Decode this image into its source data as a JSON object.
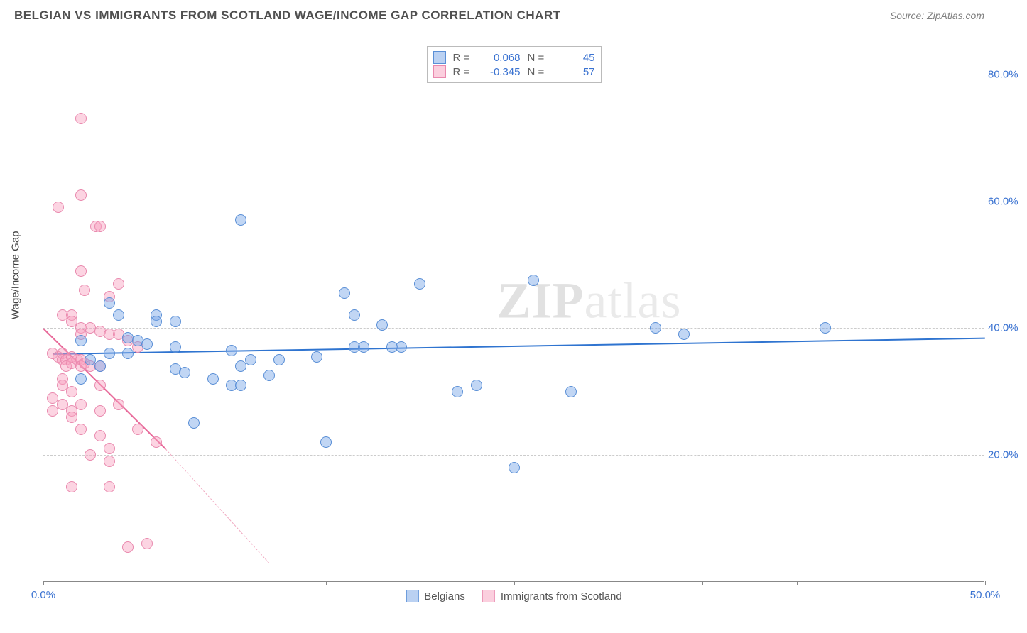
{
  "header": {
    "title": "BELGIAN VS IMMIGRANTS FROM SCOTLAND WAGE/INCOME GAP CORRELATION CHART",
    "source": "Source: ZipAtlas.com"
  },
  "chart": {
    "type": "scatter",
    "ylabel": "Wage/Income Gap",
    "xlim": [
      0,
      50
    ],
    "ylim": [
      0,
      85
    ],
    "xtick_labels": {
      "0": "0.0%",
      "50": "50.0%"
    },
    "ytick_labels": {
      "20": "20.0%",
      "40": "40.0%",
      "60": "60.0%",
      "80": "80.0%"
    },
    "xtick_positions": [
      0,
      5,
      10,
      15,
      20,
      25,
      30,
      35,
      40,
      45,
      50
    ],
    "ytick_positions": [
      20,
      40,
      60,
      80
    ],
    "grid_color": "#cccccc",
    "background_color": "#ffffff",
    "axis_color": "#888888",
    "label_color": "#3b73d1",
    "marker_radius": 8,
    "series_blue": {
      "label": "Belgians",
      "color_fill": "rgba(117,163,230,0.45)",
      "color_stroke": "#5a8fd6",
      "R": "0.068",
      "N": "45",
      "trend": {
        "x1": 0.5,
        "y1": 36,
        "x2": 50,
        "y2": 38.5,
        "color": "#2f74d0"
      },
      "points": [
        [
          10.5,
          57
        ],
        [
          16,
          45.5
        ],
        [
          20,
          47
        ],
        [
          26,
          47.5
        ],
        [
          3.5,
          44
        ],
        [
          6,
          42
        ],
        [
          6,
          41
        ],
        [
          7,
          41
        ],
        [
          16.5,
          42
        ],
        [
          4.5,
          38.5
        ],
        [
          5,
          38
        ],
        [
          5.5,
          37.5
        ],
        [
          7,
          37
        ],
        [
          10,
          36.5
        ],
        [
          10.5,
          34
        ],
        [
          14.5,
          35.5
        ],
        [
          16.5,
          37
        ],
        [
          17,
          37
        ],
        [
          18.5,
          37
        ],
        [
          7,
          33.5
        ],
        [
          7.5,
          33
        ],
        [
          8,
          25
        ],
        [
          9,
          32
        ],
        [
          10,
          31
        ],
        [
          10.5,
          31
        ],
        [
          11,
          35
        ],
        [
          12,
          32.5
        ],
        [
          12.5,
          35
        ],
        [
          22,
          30
        ],
        [
          23,
          31
        ],
        [
          28,
          30
        ],
        [
          32.5,
          40
        ],
        [
          34,
          39
        ],
        [
          41.5,
          40
        ],
        [
          15,
          22
        ],
        [
          25,
          18
        ],
        [
          2,
          38
        ],
        [
          2.5,
          35
        ],
        [
          2,
          32
        ],
        [
          3,
          34
        ],
        [
          3.5,
          36
        ],
        [
          4,
          42
        ],
        [
          4.5,
          36
        ],
        [
          18,
          40.5
        ],
        [
          19,
          37
        ]
      ]
    },
    "series_pink": {
      "label": "Immigrants from Scotland",
      "color_fill": "rgba(248,160,190,0.45)",
      "color_stroke": "#e989ae",
      "R": "-0.345",
      "N": "57",
      "trend_solid": {
        "x1": 0,
        "y1": 40,
        "x2": 6.5,
        "y2": 21,
        "color": "#e86a9a"
      },
      "trend_dash": {
        "x1": 6.5,
        "y1": 21,
        "x2": 12,
        "y2": 3,
        "color": "#f0a8c0"
      },
      "points": [
        [
          2,
          73
        ],
        [
          2,
          61
        ],
        [
          0.8,
          59
        ],
        [
          2.8,
          56
        ],
        [
          3,
          56
        ],
        [
          2,
          49
        ],
        [
          2.2,
          46
        ],
        [
          4,
          47
        ],
        [
          3.5,
          45
        ],
        [
          1,
          42
        ],
        [
          1.5,
          42
        ],
        [
          1.5,
          41
        ],
        [
          2,
          40
        ],
        [
          2,
          39
        ],
        [
          2.5,
          40
        ],
        [
          3,
          39.5
        ],
        [
          3.5,
          39
        ],
        [
          4,
          39
        ],
        [
          4.5,
          38
        ],
        [
          0.5,
          36
        ],
        [
          0.8,
          35.5
        ],
        [
          1,
          36
        ],
        [
          1,
          35
        ],
        [
          1.2,
          35
        ],
        [
          1.2,
          34
        ],
        [
          1.5,
          35.5
        ],
        [
          1.5,
          34.5
        ],
        [
          1.8,
          35
        ],
        [
          2,
          35
        ],
        [
          2,
          34
        ],
        [
          2.2,
          34.5
        ],
        [
          2.5,
          34
        ],
        [
          3,
          34
        ],
        [
          3,
          31
        ],
        [
          1,
          32
        ],
        [
          1,
          31
        ],
        [
          1.5,
          30
        ],
        [
          0.5,
          29
        ],
        [
          0.5,
          27
        ],
        [
          1,
          28
        ],
        [
          1.5,
          27
        ],
        [
          1.5,
          26
        ],
        [
          2,
          28
        ],
        [
          3,
          27
        ],
        [
          4,
          28
        ],
        [
          2,
          24
        ],
        [
          3,
          23
        ],
        [
          3.5,
          21
        ],
        [
          3.5,
          19
        ],
        [
          5,
          24
        ],
        [
          1.5,
          15
        ],
        [
          6,
          22
        ],
        [
          4.5,
          5.5
        ],
        [
          5.5,
          6
        ],
        [
          3.5,
          15
        ],
        [
          2.5,
          20
        ],
        [
          5,
          37
        ]
      ]
    },
    "stats_box": {
      "rows": [
        {
          "swatch": "blue",
          "R_label": "R =",
          "R_val": "0.068",
          "N_label": "N =",
          "N_val": "45"
        },
        {
          "swatch": "pink",
          "R_label": "R =",
          "R_val": "-0.345",
          "N_label": "N =",
          "N_val": "57"
        }
      ]
    },
    "watermark": {
      "zip": "ZIP",
      "atlas": "atlas"
    }
  }
}
